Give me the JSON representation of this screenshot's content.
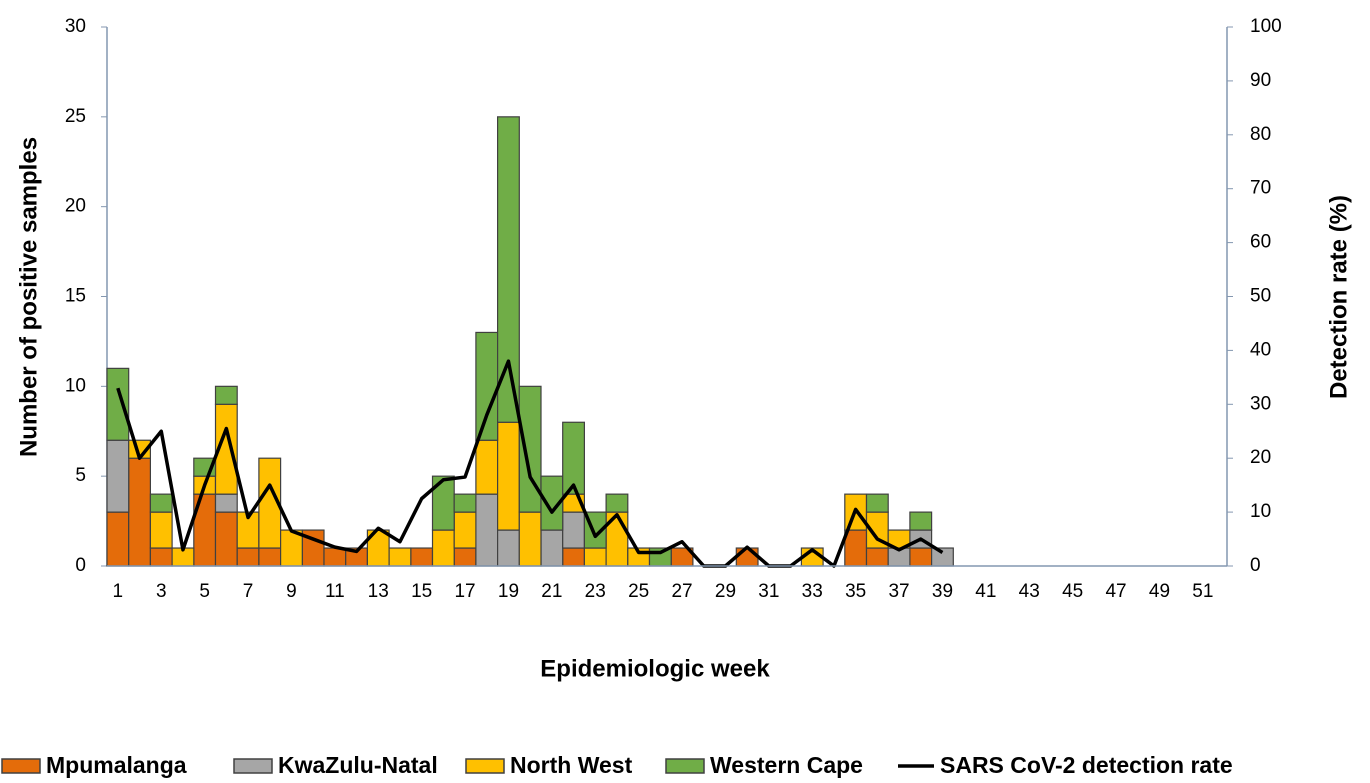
{
  "chart_data": {
    "type": "bar",
    "stacked": true,
    "x_label": "Epidemiologic week",
    "y_label": "Number of positive samples",
    "y2_label": "Detection rate (%)",
    "categories": [
      1,
      null,
      3,
      null,
      5,
      null,
      7,
      null,
      9,
      null,
      11,
      null,
      13,
      null,
      15,
      null,
      17,
      null,
      19,
      null,
      21,
      null,
      23,
      null,
      25,
      null,
      27,
      null,
      29,
      null,
      31,
      null,
      33,
      null,
      35,
      null,
      37,
      null,
      39,
      null,
      41,
      null,
      43,
      null,
      45,
      null,
      47,
      null,
      49,
      null,
      51,
      null
    ],
    "ylim": [
      0,
      30
    ],
    "yticks": [
      0,
      5,
      10,
      15,
      20,
      25,
      30
    ],
    "y2lim": [
      0,
      100
    ],
    "y2ticks": [
      0,
      10,
      20,
      30,
      40,
      50,
      60,
      70,
      80,
      90,
      100
    ],
    "series": [
      {
        "name": "Mpumalanga",
        "color": "#e46c0a",
        "values": [
          3,
          6,
          1,
          0,
          4,
          3,
          1,
          1,
          0,
          2,
          1,
          1,
          0,
          0,
          1,
          0,
          1,
          0,
          0,
          0,
          0,
          1,
          0,
          0,
          0,
          0,
          1,
          0,
          0,
          1,
          0,
          0,
          0,
          0,
          2,
          1,
          0,
          1,
          0,
          0,
          0,
          0,
          0,
          0,
          0,
          0,
          0,
          0,
          0,
          0,
          0,
          0
        ]
      },
      {
        "name": "KwaZulu-Natal",
        "color": "#a6a6a6",
        "values": [
          4,
          0,
          0,
          0,
          0,
          1,
          0,
          0,
          0,
          0,
          0,
          0,
          0,
          0,
          0,
          0,
          0,
          4,
          2,
          0,
          2,
          2,
          0,
          0,
          0,
          0,
          0,
          0,
          0,
          0,
          0,
          0,
          0,
          0,
          0,
          0,
          1,
          1,
          1,
          0,
          0,
          0,
          0,
          0,
          0,
          0,
          0,
          0,
          0,
          0,
          0,
          0
        ]
      },
      {
        "name": "North West",
        "color": "#ffc000",
        "values": [
          0,
          1,
          2,
          1,
          1,
          5,
          2,
          5,
          2,
          0,
          0,
          0,
          2,
          1,
          0,
          2,
          2,
          3,
          6,
          3,
          0,
          1,
          1,
          3,
          1,
          0,
          0,
          0,
          0,
          0,
          0,
          0,
          1,
          0,
          2,
          2,
          1,
          0,
          0,
          0,
          0,
          0,
          0,
          0,
          0,
          0,
          0,
          0,
          0,
          0,
          0,
          0
        ]
      },
      {
        "name": "Western Cape",
        "color": "#70ad47",
        "values": [
          4,
          0,
          1,
          0,
          1,
          1,
          0,
          0,
          0,
          0,
          0,
          0,
          0,
          0,
          0,
          3,
          1,
          6,
          17,
          7,
          3,
          4,
          2,
          1,
          0,
          1,
          0,
          0,
          0,
          0,
          0,
          0,
          0,
          0,
          0,
          1,
          0,
          1,
          0,
          0,
          0,
          0,
          0,
          0,
          0,
          0,
          0,
          0,
          0,
          0,
          0,
          0
        ]
      },
      {
        "name": "SARS CoV-2 detection rate",
        "color": "#000000",
        "type": "line",
        "axis": "y2",
        "values": [
          33,
          20,
          25,
          3,
          15,
          25.5,
          9,
          15,
          6.5,
          5,
          3.5,
          2.7,
          7,
          4.5,
          12.5,
          16,
          16.5,
          28,
          38,
          16.5,
          10,
          15,
          5.5,
          9.5,
          2.5,
          2.5,
          4.5,
          0,
          0,
          3.5,
          0,
          0,
          3,
          0,
          10.5,
          5,
          3,
          5,
          2.5,
          null,
          null,
          null,
          null,
          null,
          null,
          null,
          null,
          null,
          null,
          null,
          null,
          null
        ]
      }
    ]
  }
}
